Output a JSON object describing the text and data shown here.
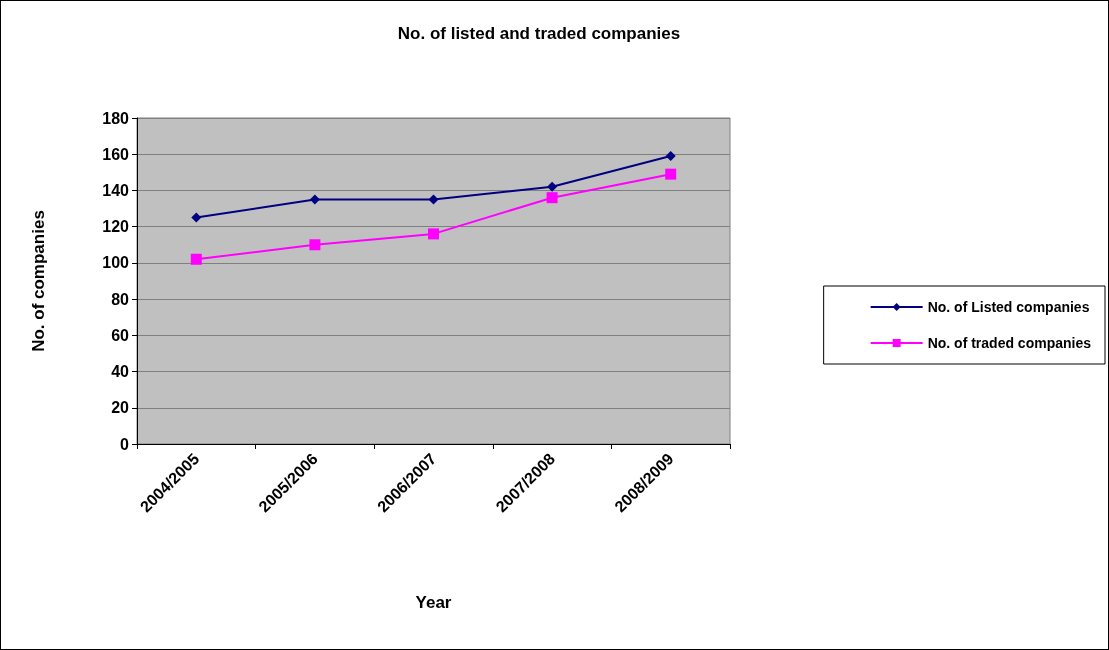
{
  "chart_data": {
    "type": "line",
    "title": "No. of listed and traded companies",
    "xlabel": "Year",
    "ylabel": "No. of companies",
    "categories": [
      "2004/2005",
      "2005/2006",
      "2006/2007",
      "2007/2008",
      "2008/2009"
    ],
    "series": [
      {
        "name": "No. of Listed companies",
        "color": "#000080",
        "marker": "diamond",
        "values": [
          125,
          135,
          135,
          142,
          159
        ]
      },
      {
        "name": "No. of traded companies",
        "color": "#ff00ff",
        "marker": "square",
        "values": [
          102,
          110,
          116,
          136,
          149
        ]
      }
    ],
    "ylim": [
      0,
      180
    ],
    "yticks": [
      0,
      20,
      40,
      60,
      80,
      100,
      120,
      140,
      160,
      180
    ],
    "grid": "y",
    "legend": "right",
    "line_style": "solid"
  }
}
